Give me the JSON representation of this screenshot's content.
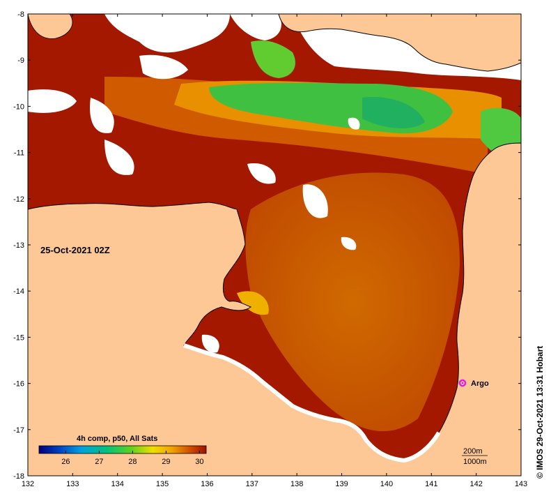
{
  "map": {
    "date_label": "25-Oct-2021 02Z",
    "x_ticks": [
      "132",
      "133",
      "134",
      "135",
      "136",
      "137",
      "138",
      "139",
      "140",
      "141",
      "142",
      "143"
    ],
    "y_ticks": [
      "-8",
      "-9",
      "-10",
      "-11",
      "-12",
      "-13",
      "-14",
      "-15",
      "-16",
      "-17",
      "-18"
    ],
    "argo_label": "Argo",
    "depth_labels": [
      "200m",
      "1000m"
    ],
    "credit": "© IMOS 29-Oct-2021 13:31 Hobart"
  },
  "colorbar": {
    "title": "4h comp, p50, All Sats",
    "ticks": [
      "26",
      "27",
      "28",
      "29",
      "30"
    ],
    "min": 25.2,
    "max": 30.2
  },
  "colors": {
    "land": "#fdc896",
    "sst_hot": "#a51800",
    "sst_warm": "#c84a00",
    "sst_orange": "#e07a00",
    "sst_yellow": "#f0b400",
    "sst_green": "#30c030",
    "argo": "#e020e0",
    "cloud": "#ffffff"
  }
}
